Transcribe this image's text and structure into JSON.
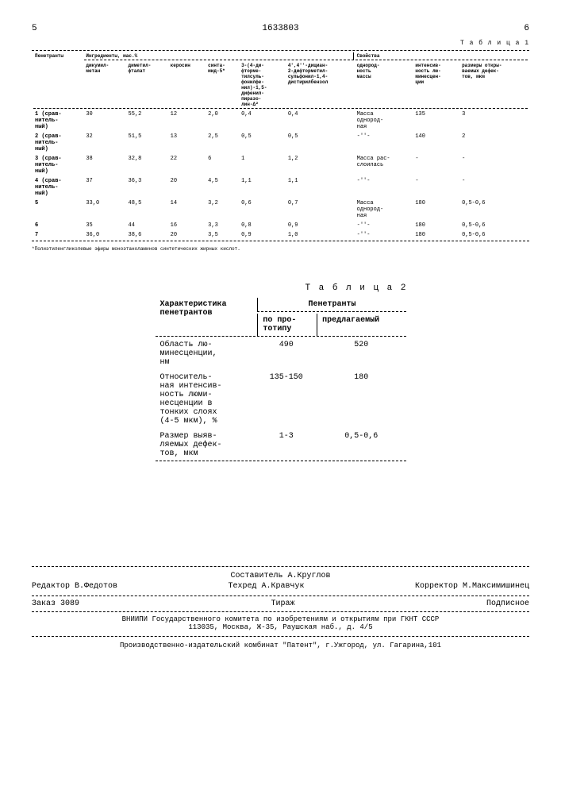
{
  "page": {
    "left_num": "5",
    "doc_num": "1633803",
    "right_num": "6"
  },
  "table1": {
    "label": "Т а б л и ц а 1",
    "group_headers": [
      "Ингредиенты, мас.%",
      "Свойства"
    ],
    "col_headers": [
      "Пенетранты",
      "дикумил-\nметан",
      "диметил-\nфталат",
      "керосин",
      "синта-\nмид-5*",
      "3-(4-ди-\nфторме-\nтилсуль-\nфонилфе-\nнил)-1,5-\nдифенил-\nпиразо-\nлин-Δ²",
      "4',4''-дициан-\n2-дифторметил-\nсульфонил-1,4-\nдистирилбензол",
      "однород-\nность\nмассы",
      "интенсив-\nность лю-\nминесцен-\nции",
      "размеры откры-\nваемых дефек-\nтов, мкм"
    ],
    "rows": [
      {
        "label": "1 (срав-\nнитель-\nный)",
        "cells": [
          "30",
          "55,2",
          "12",
          "2,0",
          "0,4",
          "0,4",
          "Масса\nоднород-\nная",
          "135",
          "3"
        ]
      },
      {
        "label": "2 (срав-\nнитель-\nный)",
        "cells": [
          "32",
          "51,5",
          "13",
          "2,5",
          "0,5",
          "0,5",
          "-''-",
          "140",
          "2"
        ]
      },
      {
        "label": "3 (срав-\nнитель-\nный)",
        "cells": [
          "38",
          "32,8",
          "22",
          "6",
          "1",
          "1,2",
          "Масса рас-\nслоилась",
          "-",
          "-"
        ]
      },
      {
        "label": "4 (срав-\nнитель-\nный)",
        "cells": [
          "37",
          "36,3",
          "20",
          "4,5",
          "1,1",
          "1,1",
          "-''-",
          "-",
          "-"
        ]
      },
      {
        "label": "5",
        "cells": [
          "33,0",
          "48,5",
          "14",
          "3,2",
          "0,6",
          "0,7",
          "Масса\nоднород-\nная",
          "180",
          "0,5-0,6"
        ]
      },
      {
        "label": "6",
        "cells": [
          "35",
          "44",
          "16",
          "3,3",
          "0,8",
          "0,9",
          "-''-",
          "180",
          "0,5-0,6"
        ]
      },
      {
        "label": "7",
        "cells": [
          "36,0",
          "38,6",
          "20",
          "3,5",
          "0,9",
          "1,0",
          "-''-",
          "180",
          "0,5-0,6"
        ]
      }
    ],
    "footnote": "*Полиэтиленгликолевые эфиры моноэтаноламинов синтетических жирных кислот."
  },
  "table2": {
    "label": "Т а б л и ц а 2",
    "col_headers": {
      "main": "Характеристика\nпенетрантов",
      "group": "Пенетранты",
      "sub1": "по про-\nтотипу",
      "sub2": "предлагаемый"
    },
    "rows": [
      {
        "label": "Область лю-\nминесценции,\nнм",
        "v1": "490",
        "v2": "520"
      },
      {
        "label": "Относитель-\nная интенсив-\nность люми-\nнесценции в\nтонких слоях\n(4-5 мкм), %",
        "v1": "135-150",
        "v2": "180"
      },
      {
        "label": "Размер выяв-\nляемых дефек-\nтов, мкм",
        "v1": "1-3",
        "v2": "0,5-0,6"
      }
    ]
  },
  "credits": {
    "compiler": "Составитель А.Круглов",
    "editor": "Редактор В.Федотов",
    "techred": "Техред А.Кравчук",
    "corrector": "Корректор М.Максимишинец",
    "order": "Заказ 3089",
    "tirage": "Тираж",
    "subscribe": "Подписное",
    "institution": "ВНИИПИ Государственного комитета по изобретениям и открытиям при ГКНТ СССР\n113035, Москва, Ж-35, Раушская наб., д. 4/5",
    "producer": "Производственно-издательский комбинат \"Патент\", г.Ужгород, ул. Гагарина,101"
  }
}
